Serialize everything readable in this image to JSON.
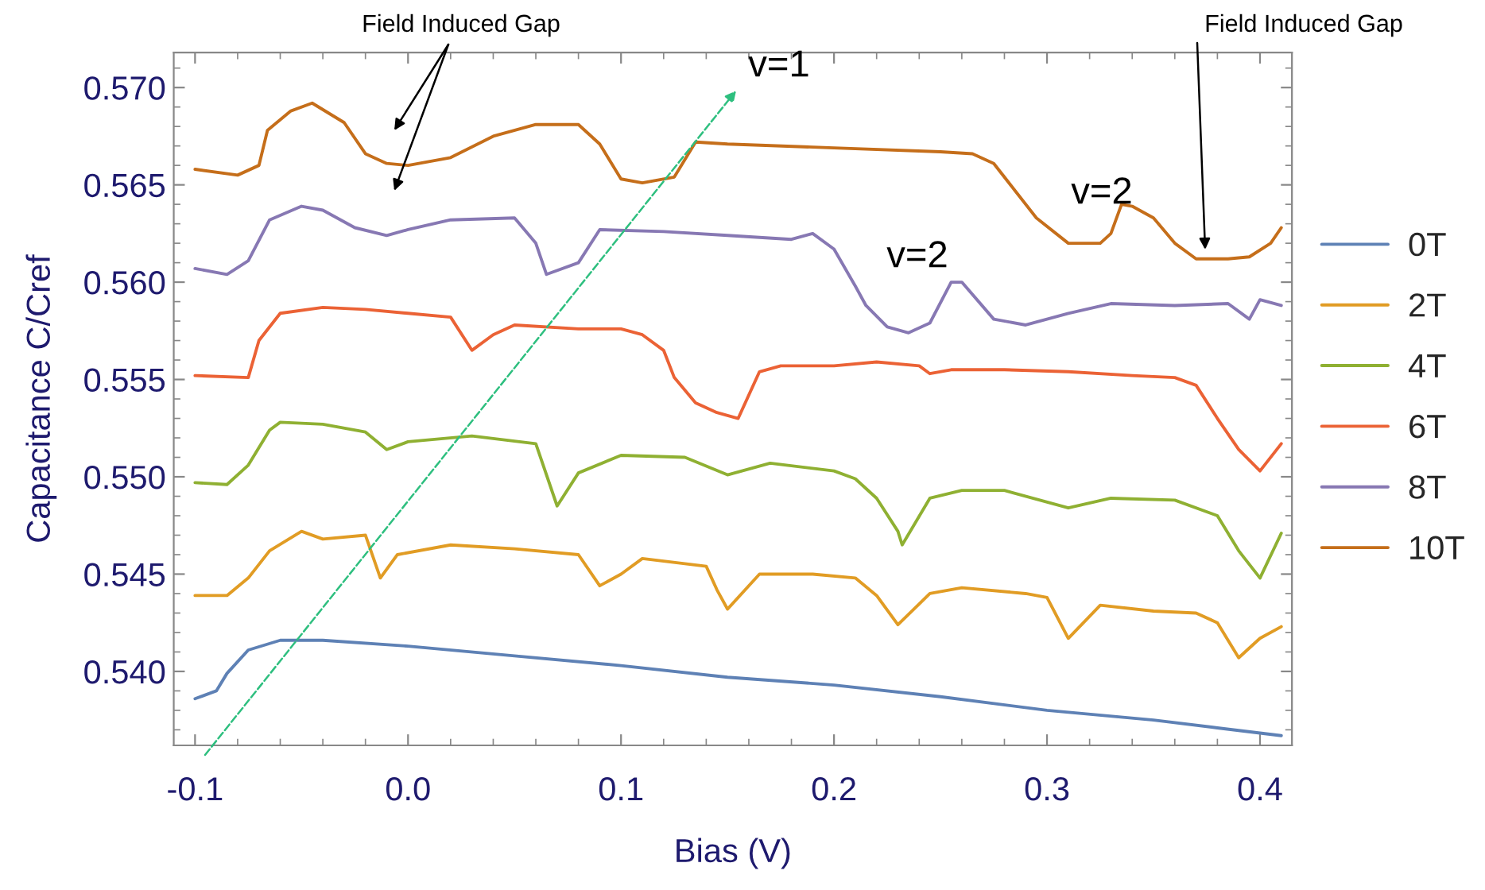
{
  "chart_data": {
    "type": "line",
    "xlabel": "Bias (V)",
    "ylabel": "Capacitance C/Cref",
    "xlim": [
      -0.11,
      0.415
    ],
    "ylim": [
      0.5362,
      0.5718
    ],
    "xticks": [
      -0.1,
      {
        "value": 0.0,
        "label": "0.0"
      },
      0.1,
      0.2,
      0.3,
      0.4
    ],
    "yticks": [
      {
        "value": 0.54,
        "label": "0.540"
      },
      0.545,
      {
        "value": 0.55,
        "label": "0.550"
      },
      0.555,
      {
        "value": 0.56,
        "label": "0.560"
      },
      0.565,
      {
        "value": 0.57,
        "label": "0.570"
      }
    ],
    "grid": false,
    "legend": "right",
    "marker": "none",
    "line_style": "solid",
    "series": [
      {
        "name": "0T",
        "color": "#5e81b5",
        "x": [
          -0.1,
          -0.09,
          -0.085,
          -0.075,
          -0.06,
          -0.04,
          0.0,
          0.05,
          0.1,
          0.15,
          0.2,
          0.25,
          0.3,
          0.35,
          0.38,
          0.41
        ],
        "values": [
          0.5386,
          0.539,
          0.5399,
          0.5411,
          0.5416,
          0.5416,
          0.5413,
          0.5408,
          0.5403,
          0.5397,
          0.5393,
          0.5387,
          0.538,
          0.5375,
          0.5371,
          0.5367
        ]
      },
      {
        "name": "2T",
        "color": "#e19c24",
        "x": [
          -0.1,
          -0.085,
          -0.075,
          -0.065,
          -0.05,
          -0.04,
          -0.02,
          -0.013,
          -0.005,
          0.02,
          0.05,
          0.08,
          0.09,
          0.1,
          0.11,
          0.14,
          0.145,
          0.15,
          0.165,
          0.19,
          0.21,
          0.22,
          0.23,
          0.245,
          0.26,
          0.29,
          0.3,
          0.31,
          0.325,
          0.35,
          0.37,
          0.38,
          0.39,
          0.4,
          0.41
        ],
        "values": [
          0.5439,
          0.5439,
          0.5448,
          0.5462,
          0.5472,
          0.5468,
          0.547,
          0.5448,
          0.546,
          0.5465,
          0.5463,
          0.546,
          0.5444,
          0.545,
          0.5458,
          0.5454,
          0.5442,
          0.5432,
          0.545,
          0.545,
          0.5448,
          0.5439,
          0.5424,
          0.544,
          0.5443,
          0.544,
          0.5438,
          0.5417,
          0.5434,
          0.5431,
          0.543,
          0.5425,
          0.5407,
          0.5417,
          0.5423
        ]
      },
      {
        "name": "4T",
        "color": "#8fb032",
        "x": [
          -0.1,
          -0.085,
          -0.075,
          -0.065,
          -0.06,
          -0.04,
          -0.02,
          -0.01,
          0.0,
          0.03,
          0.06,
          0.07,
          0.08,
          0.1,
          0.13,
          0.15,
          0.17,
          0.2,
          0.21,
          0.22,
          0.23,
          0.232,
          0.245,
          0.26,
          0.28,
          0.31,
          0.33,
          0.36,
          0.38,
          0.39,
          0.4,
          0.41
        ],
        "values": [
          0.5497,
          0.5496,
          0.5506,
          0.5524,
          0.5528,
          0.5527,
          0.5523,
          0.5514,
          0.5518,
          0.5521,
          0.5517,
          0.5485,
          0.5502,
          0.5511,
          0.551,
          0.5501,
          0.5507,
          0.5503,
          0.5499,
          0.5489,
          0.5472,
          0.5465,
          0.5489,
          0.5493,
          0.5493,
          0.5484,
          0.5489,
          0.5488,
          0.548,
          0.5462,
          0.5448,
          0.5471
        ]
      },
      {
        "name": "6T",
        "color": "#eb6235",
        "x": [
          -0.1,
          -0.075,
          -0.07,
          -0.06,
          -0.04,
          -0.02,
          0.0,
          0.02,
          0.03,
          0.04,
          0.05,
          0.08,
          0.1,
          0.11,
          0.12,
          0.125,
          0.135,
          0.145,
          0.155,
          0.165,
          0.175,
          0.2,
          0.22,
          0.24,
          0.245,
          0.255,
          0.28,
          0.31,
          0.34,
          0.36,
          0.37,
          0.38,
          0.39,
          0.4,
          0.41
        ],
        "values": [
          0.5552,
          0.5551,
          0.557,
          0.5584,
          0.5587,
          0.5586,
          0.5584,
          0.5582,
          0.5565,
          0.5573,
          0.5578,
          0.5576,
          0.5576,
          0.5573,
          0.5565,
          0.5551,
          0.5538,
          0.5533,
          0.553,
          0.5554,
          0.5557,
          0.5557,
          0.5559,
          0.5557,
          0.5553,
          0.5555,
          0.5555,
          0.5554,
          0.5552,
          0.5551,
          0.5547,
          0.553,
          0.5514,
          0.5503,
          0.5517
        ]
      },
      {
        "name": "8T",
        "color": "#8778b3",
        "x": [
          -0.1,
          -0.085,
          -0.075,
          -0.065,
          -0.05,
          -0.04,
          -0.025,
          -0.01,
          0.0,
          0.02,
          0.05,
          0.06,
          0.065,
          0.08,
          0.09,
          0.12,
          0.15,
          0.18,
          0.19,
          0.2,
          0.21,
          0.215,
          0.225,
          0.235,
          0.245,
          0.255,
          0.26,
          0.275,
          0.29,
          0.31,
          0.33,
          0.36,
          0.385,
          0.395,
          0.4,
          0.41
        ],
        "values": [
          0.5607,
          0.5604,
          0.5611,
          0.5632,
          0.5639,
          0.5637,
          0.5628,
          0.5624,
          0.5627,
          0.5632,
          0.5633,
          0.562,
          0.5604,
          0.561,
          0.5627,
          0.5626,
          0.5624,
          0.5622,
          0.5625,
          0.5617,
          0.5598,
          0.5588,
          0.5577,
          0.5574,
          0.5579,
          0.56,
          0.56,
          0.5581,
          0.5578,
          0.5584,
          0.5589,
          0.5588,
          0.5589,
          0.5581,
          0.5591,
          0.5588
        ]
      },
      {
        "name": "10T",
        "color": "#c56e1a",
        "x": [
          -0.1,
          -0.08,
          -0.07,
          -0.066,
          -0.055,
          -0.045,
          -0.03,
          -0.02,
          -0.01,
          0.0,
          0.02,
          0.04,
          0.06,
          0.08,
          0.09,
          0.1,
          0.11,
          0.125,
          0.135,
          0.15,
          0.2,
          0.25,
          0.265,
          0.275,
          0.285,
          0.295,
          0.31,
          0.325,
          0.33,
          0.335,
          0.34,
          0.35,
          0.36,
          0.37,
          0.385,
          0.395,
          0.405,
          0.41
        ],
        "values": [
          0.5658,
          0.5655,
          0.566,
          0.5678,
          0.5688,
          0.5692,
          0.5682,
          0.5666,
          0.5661,
          0.566,
          0.5664,
          0.5675,
          0.5681,
          0.5681,
          0.5671,
          0.5653,
          0.5651,
          0.5654,
          0.5672,
          0.5671,
          0.5669,
          0.5667,
          0.5666,
          0.5661,
          0.5647,
          0.5633,
          0.562,
          0.562,
          0.5625,
          0.564,
          0.5639,
          0.5633,
          0.562,
          0.5612,
          0.5612,
          0.5613,
          0.562,
          0.5628
        ]
      }
    ],
    "annotations": [
      "Field Induced Gap",
      "Field Induced Gap",
      "v=1",
      "v=2",
      "v=2"
    ]
  }
}
